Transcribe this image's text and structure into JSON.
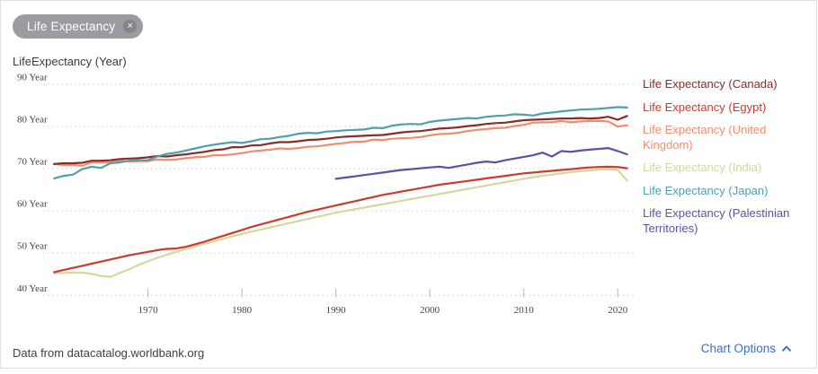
{
  "filter_chip": {
    "label": "Life Expectancy",
    "close_label": "×",
    "bg": "#9c9ca0",
    "close_bg": "#84848a"
  },
  "footer": {
    "source_text": "Data from datacatalog.worldbank.org",
    "chart_options_label": "Chart Options",
    "chart_options_color": "#3e6fc2",
    "chevron_icon": "chevron-up"
  },
  "colors": {
    "grid": "#d9d9d9",
    "tick_text": "#45433d",
    "tick_mark": "#b5b5b5"
  },
  "chart_data": {
    "type": "line",
    "title": "",
    "ylabel": "LifeExpectancy (Year)",
    "xlabel": "",
    "grid": "dashed-horizontal",
    "legend_position": "right",
    "xlim": [
      1959.6,
      2021.8
    ],
    "ylim": [
      40,
      90
    ],
    "x_ticks": [
      1970,
      1980,
      1990,
      2000,
      2010,
      2020
    ],
    "y_ticks": [
      90,
      80,
      70,
      60,
      50,
      40
    ],
    "y_tick_suffix": " Year",
    "series": [
      {
        "name": "Life Expectancy (Canada)",
        "color": "#8b2b28",
        "start_year": 1960,
        "values": [
          71.1,
          71.3,
          71.3,
          71.4,
          71.9,
          71.9,
          72.0,
          72.3,
          72.4,
          72.5,
          72.7,
          73.0,
          72.9,
          73.2,
          73.4,
          73.7,
          74.0,
          74.4,
          74.6,
          75.1,
          75.1,
          75.5,
          75.6,
          76.0,
          76.3,
          76.3,
          76.5,
          76.8,
          76.9,
          77.1,
          77.4,
          77.6,
          77.7,
          77.8,
          77.9,
          78.0,
          78.3,
          78.6,
          78.8,
          78.9,
          79.2,
          79.5,
          79.6,
          79.8,
          80.1,
          80.3,
          80.6,
          80.8,
          80.9,
          81.2,
          81.5,
          81.6,
          81.7,
          81.8,
          81.9,
          81.9,
          82.0,
          81.9,
          82.0,
          82.3,
          81.6,
          82.5
        ]
      },
      {
        "name": "Life Expectancy (Egypt)",
        "color": "#cc3b2b",
        "start_year": 1960,
        "values": [
          45.5,
          46.0,
          46.5,
          47.0,
          47.5,
          48.0,
          48.5,
          49.0,
          49.5,
          49.9,
          50.3,
          50.7,
          51.0,
          51.1,
          51.5,
          52.1,
          52.7,
          53.4,
          54.1,
          54.8,
          55.5,
          56.2,
          56.8,
          57.4,
          58.0,
          58.6,
          59.2,
          59.8,
          60.3,
          60.8,
          61.3,
          61.8,
          62.3,
          62.8,
          63.3,
          63.8,
          64.2,
          64.6,
          65.0,
          65.4,
          65.8,
          66.2,
          66.5,
          66.8,
          67.1,
          67.4,
          67.7,
          68.0,
          68.3,
          68.6,
          68.9,
          69.1,
          69.3,
          69.5,
          69.7,
          69.9,
          70.1,
          70.3,
          70.4,
          70.5,
          70.4,
          70.1
        ]
      },
      {
        "name": "Life Expectancy (United Kingdom)",
        "color": "#ef8e6d",
        "start_year": 1960,
        "values": [
          71.1,
          70.9,
          70.9,
          70.7,
          71.5,
          71.5,
          71.5,
          71.9,
          71.7,
          71.8,
          71.8,
          72.2,
          72.1,
          72.2,
          72.5,
          72.7,
          72.8,
          73.2,
          73.2,
          73.4,
          73.7,
          74.1,
          74.3,
          74.5,
          74.8,
          74.7,
          74.9,
          75.2,
          75.3,
          75.6,
          75.9,
          76.1,
          76.4,
          76.4,
          76.9,
          76.8,
          77.1,
          77.2,
          77.3,
          77.5,
          77.9,
          78.2,
          78.3,
          78.5,
          78.9,
          79.2,
          79.4,
          79.6,
          79.7,
          80.1,
          80.4,
          80.9,
          81.0,
          81.0,
          81.3,
          81.0,
          81.2,
          81.3,
          81.3,
          81.2,
          80.0,
          80.3
        ]
      },
      {
        "name": "Life Expectancy (India)",
        "color": "#d5d79e",
        "start_year": 1960,
        "values": [
          45.2,
          45.3,
          45.4,
          45.4,
          45.1,
          44.6,
          44.4,
          45.3,
          46.2,
          47.2,
          48.1,
          48.9,
          49.6,
          50.3,
          51.0,
          51.6,
          52.2,
          52.8,
          53.4,
          54.0,
          54.5,
          55.1,
          55.6,
          56.1,
          56.6,
          57.1,
          57.6,
          58.1,
          58.6,
          59.1,
          59.6,
          60.0,
          60.4,
          60.8,
          61.2,
          61.6,
          62.0,
          62.4,
          62.8,
          63.2,
          63.6,
          64.0,
          64.4,
          64.8,
          65.2,
          65.6,
          66.0,
          66.4,
          66.8,
          67.2,
          67.6,
          68.0,
          68.3,
          68.6,
          68.9,
          69.2,
          69.4,
          69.6,
          69.8,
          69.9,
          69.7,
          67.2
        ]
      },
      {
        "name": "Life Expectancy (Japan)",
        "color": "#4f9fad",
        "start_year": 1960,
        "values": [
          67.7,
          68.3,
          68.6,
          69.9,
          70.5,
          70.2,
          71.3,
          71.5,
          71.9,
          72.0,
          72.0,
          72.9,
          73.5,
          73.8,
          74.3,
          74.8,
          75.3,
          75.7,
          76.0,
          76.3,
          76.1,
          76.5,
          77.0,
          77.1,
          77.5,
          77.8,
          78.3,
          78.5,
          78.4,
          78.8,
          78.9,
          79.1,
          79.2,
          79.3,
          79.7,
          79.6,
          80.2,
          80.5,
          80.6,
          80.5,
          81.1,
          81.4,
          81.6,
          81.8,
          82.0,
          81.9,
          82.3,
          82.5,
          82.6,
          82.9,
          82.8,
          82.6,
          83.1,
          83.3,
          83.6,
          83.8,
          84.0,
          84.1,
          84.2,
          84.4,
          84.6,
          84.5
        ]
      },
      {
        "name": "Life Expectancy (Palestinian Territories)",
        "color": "#5a52a3",
        "start_year": 1990,
        "values": [
          67.6,
          67.9,
          68.2,
          68.5,
          68.8,
          69.1,
          69.4,
          69.7,
          69.9,
          70.1,
          70.3,
          70.5,
          70.2,
          70.6,
          71.0,
          71.4,
          71.7,
          71.5,
          72.0,
          72.4,
          72.8,
          73.2,
          73.8,
          72.9,
          74.2,
          74.0,
          74.3,
          74.5,
          74.7,
          74.9,
          74.2,
          73.4
        ]
      }
    ]
  }
}
